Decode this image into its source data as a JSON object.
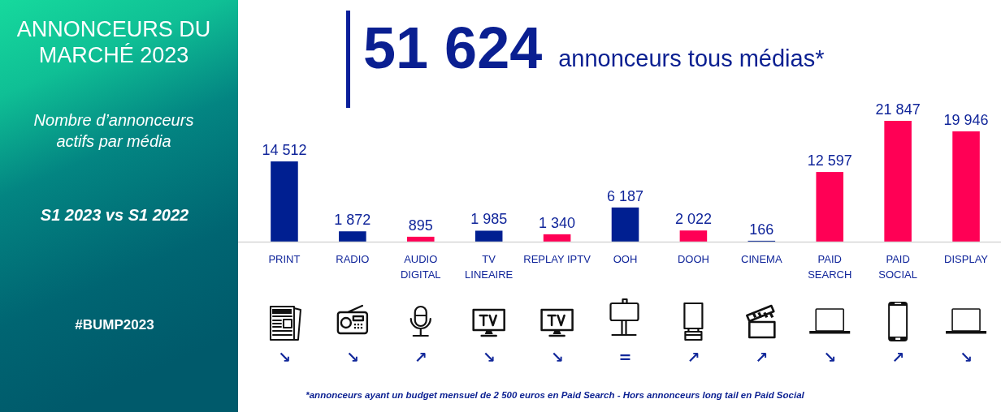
{
  "chart_data": {
    "type": "bar",
    "title": "ANNONCEURS DU MARCHÉ 2023",
    "subtitle": "Nombre d’annonceurs actifs par média",
    "categories": [
      "PRINT",
      "RADIO",
      "AUDIO\nDIGITAL",
      "TV\nLINEAIRE",
      "REPLAY IPTV",
      "OOH",
      "DOOH",
      "CINEMA",
      "PAID\nSEARCH",
      "PAID\nSOCIAL",
      "DISPLAY"
    ],
    "values": [
      14512,
      1872,
      895,
      1985,
      1340,
      6187,
      2022,
      166,
      12597,
      21847,
      19946
    ],
    "colors": [
      "#001f91",
      "#001f91",
      "#ff0055",
      "#001f91",
      "#ff0055",
      "#001f91",
      "#ff0055",
      "#001f91",
      "#ff0055",
      "#ff0055",
      "#ff0055"
    ],
    "data_labels": true,
    "tick_labels": "x",
    "annotations": [
      "51 624",
      "annonceurs tous médias*",
      "S1 2023 vs S1 2022",
      "#BUMP2023",
      "*annonceurs ayant un budget mensuel de 2 500 euros en Paid Search - Hors annonceurs long tail en Paid Social",
      "↘",
      "↘",
      "↗",
      "↘",
      "↘",
      "=",
      "↗",
      "↗",
      "↘",
      "↗",
      "↘"
    ]
  }
}
